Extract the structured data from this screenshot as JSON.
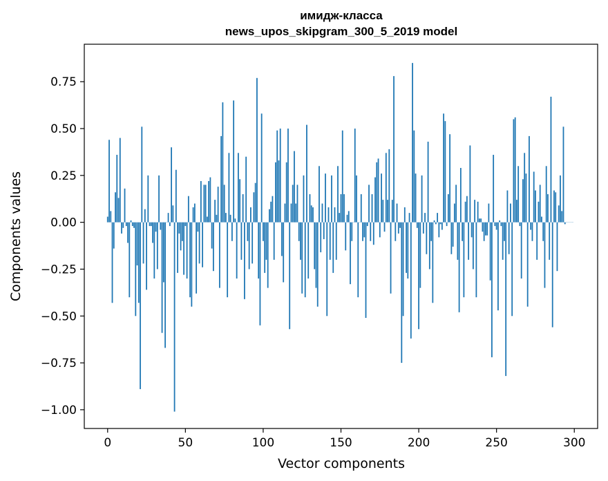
{
  "chart_data": {
    "type": "bar",
    "title": [
      "имидж-класса",
      "news_upos_skipgram_300_5_2019 model"
    ],
    "xlabel": "Vector components",
    "ylabel": "Components values",
    "xlim": [
      -15,
      315
    ],
    "ylim": [
      -1.1,
      0.95
    ],
    "xticks": [
      0,
      50,
      100,
      150,
      200,
      250,
      300
    ],
    "xtick_labels": [
      "0",
      "50",
      "100",
      "150",
      "200",
      "250",
      "300"
    ],
    "yticks": [
      -1.0,
      -0.75,
      -0.5,
      -0.25,
      0.0,
      0.25,
      0.5,
      0.75
    ],
    "ytick_labels": [
      "−1.00",
      "−0.75",
      "−0.50",
      "−0.25",
      "0.00",
      "0.25",
      "0.50",
      "0.75"
    ],
    "bar_color": "#1f77b4",
    "grid": false,
    "series": [
      {
        "x_start": 0,
        "values": [
          0.03,
          0.44,
          0.06,
          -0.43,
          -0.14,
          0.16,
          0.36,
          0.13,
          0.45,
          -0.06,
          -0.03,
          0.18,
          -0.02,
          -0.11,
          -0.4,
          0.01,
          -0.02,
          -0.03,
          -0.5,
          -0.23,
          -0.43,
          -0.89,
          0.51,
          -0.22,
          0.07,
          -0.36,
          0.25,
          -0.02,
          -0.02,
          -0.11,
          -0.3,
          -0.05,
          -0.25,
          0.25,
          -0.04,
          -0.59,
          -0.32,
          -0.67,
          0.0,
          0.05,
          -0.02,
          0.4,
          0.09,
          -1.01,
          0.28,
          -0.27,
          -0.06,
          -0.15,
          -0.1,
          -0.28,
          -0.02,
          -0.3,
          0.14,
          -0.4,
          -0.45,
          0.08,
          0.1,
          -0.38,
          -0.05,
          -0.22,
          0.22,
          -0.24,
          0.2,
          0.2,
          0.03,
          0.22,
          0.24,
          -0.14,
          -0.26,
          0.12,
          0.04,
          0.19,
          -0.35,
          0.46,
          0.64,
          0.2,
          0.05,
          -0.4,
          0.37,
          0.04,
          -0.1,
          0.65,
          0.02,
          -0.3,
          0.37,
          0.23,
          -0.2,
          0.15,
          -0.41,
          0.35,
          -0.1,
          -0.25,
          0.08,
          -0.22,
          0.16,
          0.21,
          0.77,
          -0.3,
          -0.55,
          0.58,
          -0.1,
          -0.27,
          -0.2,
          -0.35,
          0.07,
          0.11,
          0.14,
          -0.2,
          0.32,
          0.49,
          0.33,
          0.5,
          -0.18,
          -0.32,
          0.1,
          0.32,
          0.5,
          -0.57,
          0.1,
          0.2,
          0.38,
          0.1,
          0.2,
          -0.1,
          -0.2,
          -0.38,
          0.25,
          -0.4,
          0.52,
          -0.3,
          0.15,
          0.09,
          0.08,
          -0.25,
          -0.35,
          -0.45,
          0.3,
          -0.16,
          0.1,
          -0.09,
          0.26,
          -0.5,
          0.08,
          -0.2,
          0.25,
          -0.27,
          0.08,
          -0.2,
          0.3,
          0.05,
          0.15,
          0.49,
          0.15,
          -0.15,
          0.04,
          0.06,
          -0.33,
          -0.1,
          0.0,
          0.5,
          0.25,
          -0.4,
          0.0,
          0.15,
          -0.1,
          -0.08,
          -0.51,
          -0.02,
          0.2,
          -0.1,
          0.15,
          -0.12,
          0.24,
          0.32,
          0.34,
          -0.08,
          0.26,
          0.12,
          -0.05,
          0.37,
          0.12,
          0.39,
          -0.38,
          0.12,
          0.78,
          -0.1,
          0.1,
          -0.06,
          -0.03,
          -0.75,
          -0.5,
          0.08,
          -0.27,
          -0.3,
          0.05,
          -0.62,
          0.85,
          0.49,
          0.26,
          -0.03,
          -0.57,
          -0.35,
          0.25,
          -0.06,
          0.05,
          -0.17,
          0.43,
          -0.25,
          -0.1,
          -0.43,
          0.01,
          -0.01,
          0.05,
          -0.08,
          -0.01,
          -0.04,
          0.58,
          0.54,
          -0.02,
          0.15,
          0.47,
          -0.17,
          -0.13,
          0.1,
          0.2,
          -0.2,
          -0.48,
          0.29,
          -0.1,
          -0.4,
          0.11,
          0.14,
          -0.2,
          0.41,
          -0.08,
          -0.25,
          0.12,
          -0.4,
          0.11,
          0.02,
          0.02,
          -0.05,
          -0.1,
          -0.07,
          -0.07,
          0.1,
          -0.31,
          -0.72,
          0.36,
          -0.02,
          -0.04,
          -0.47,
          0.01,
          -0.02,
          -0.2,
          -0.1,
          -0.82,
          0.17,
          -0.17,
          0.1,
          -0.5,
          0.55,
          0.56,
          0.12,
          0.3,
          -0.02,
          -0.3,
          0.23,
          0.37,
          0.26,
          -0.45,
          0.46,
          -0.04,
          -0.1,
          0.27,
          0.17,
          -0.2,
          0.11,
          0.2,
          0.03,
          -0.1,
          -0.35,
          0.3,
          0.15,
          -0.2,
          0.67,
          -0.56,
          0.17,
          0.16,
          -0.26,
          0.09,
          0.25,
          0.06,
          0.51,
          -0.01,
          0.0,
          0.0,
          0.0,
          0.0,
          0.0
        ]
      }
    ]
  }
}
